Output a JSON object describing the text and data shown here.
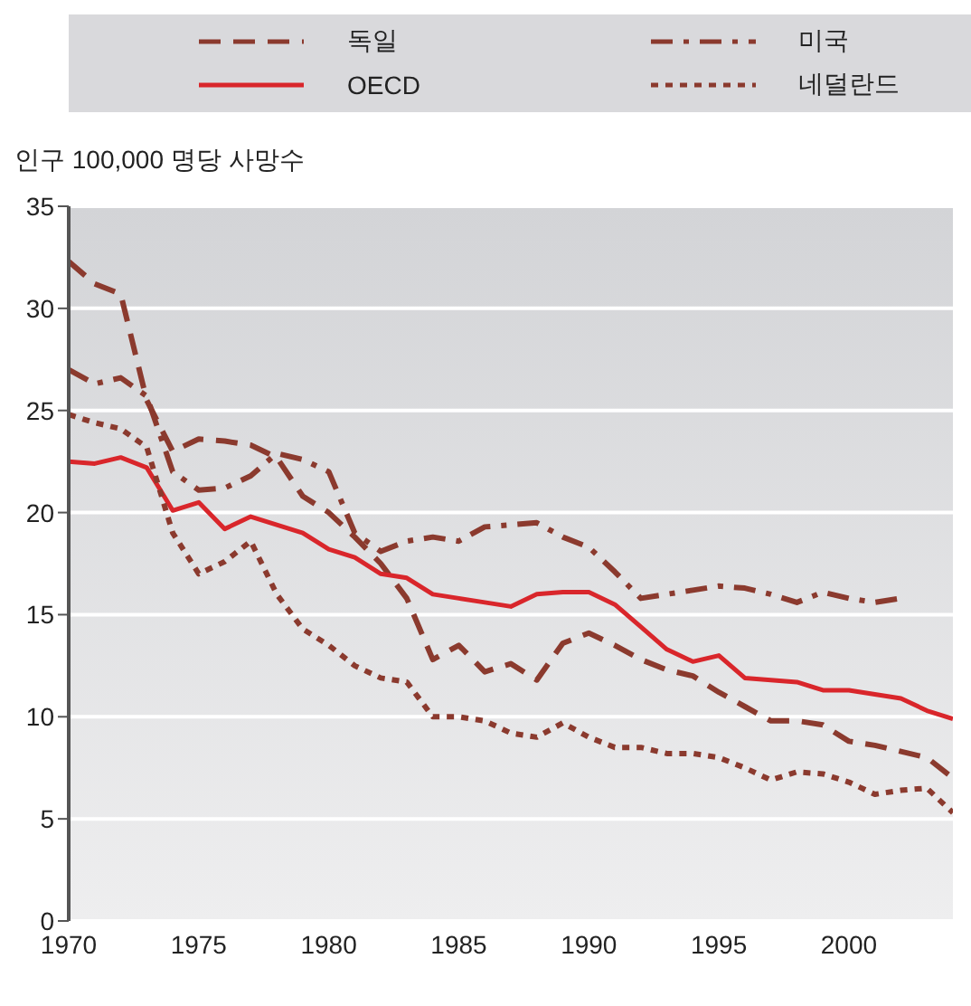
{
  "chart_data": {
    "type": "line",
    "ylabel": "인구 100,000 명당 사망수",
    "xlim": [
      1970,
      2004
    ],
    "xticks": [
      1970,
      1975,
      1980,
      1985,
      1990,
      1995,
      2000
    ],
    "ylim": [
      0,
      35
    ],
    "yticks": [
      0,
      5,
      10,
      15,
      20,
      25,
      30,
      35
    ],
    "grid": "y",
    "legend": "top",
    "marker": "none",
    "x": [
      1970,
      1971,
      1972,
      1973,
      1974,
      1975,
      1976,
      1977,
      1978,
      1979,
      1980,
      1981,
      1982,
      1983,
      1984,
      1985,
      1986,
      1987,
      1988,
      1989,
      1990,
      1991,
      1992,
      1993,
      1994,
      1995,
      1996,
      1997,
      1998,
      1999,
      2000,
      2001,
      2002,
      2003,
      2004
    ],
    "series": [
      {
        "name": "독일",
        "color": "#8b3a2e",
        "line_style": "dashed",
        "values": [
          32.3,
          31.2,
          30.7,
          25.5,
          23.0,
          23.6,
          23.5,
          23.3,
          22.7,
          20.8,
          20.0,
          18.8,
          17.5,
          15.8,
          12.8,
          13.5,
          12.2,
          12.6,
          11.8,
          13.6,
          14.1,
          13.5,
          12.8,
          12.3,
          12.0,
          11.2,
          10.5,
          9.8,
          9.8,
          9.6,
          8.8,
          8.6,
          8.3,
          8.0,
          7.0
        ]
      },
      {
        "name": "OECD",
        "color": "#d9262b",
        "line_style": "solid",
        "values": [
          22.5,
          22.4,
          22.7,
          22.2,
          20.1,
          20.5,
          19.2,
          19.8,
          19.4,
          19.0,
          18.2,
          17.8,
          17.0,
          16.8,
          16.0,
          15.8,
          15.6,
          15.4,
          16.0,
          16.1,
          16.1,
          15.5,
          14.4,
          13.3,
          12.7,
          13.0,
          11.9,
          11.8,
          11.7,
          11.3,
          11.3,
          11.1,
          10.9,
          10.3,
          9.9
        ]
      },
      {
        "name": "미국",
        "color": "#8b3a2e",
        "line_style": "dashdot",
        "values": [
          27.0,
          26.3,
          26.6,
          25.7,
          22.0,
          21.1,
          21.2,
          21.8,
          22.9,
          22.6,
          22.0,
          19.0,
          18.1,
          18.6,
          18.8,
          18.6,
          19.3,
          19.4,
          19.5,
          18.8,
          18.3,
          17.1,
          15.8,
          16.0,
          16.2,
          16.4,
          16.3,
          16.0,
          15.6,
          16.1,
          15.8,
          15.6,
          15.8,
          null,
          null
        ]
      },
      {
        "name": "네덜란드",
        "color": "#8b3a2e",
        "line_style": "dotted",
        "values": [
          24.8,
          24.4,
          24.1,
          23.2,
          19.0,
          17.0,
          17.6,
          18.6,
          16.0,
          14.3,
          13.5,
          12.5,
          11.9,
          11.7,
          10.0,
          10.0,
          9.8,
          9.2,
          9.0,
          9.7,
          9.0,
          8.5,
          8.5,
          8.2,
          8.2,
          8.0,
          7.5,
          6.9,
          7.3,
          7.2,
          6.8,
          6.2,
          6.4,
          6.5,
          5.3
        ]
      }
    ]
  }
}
